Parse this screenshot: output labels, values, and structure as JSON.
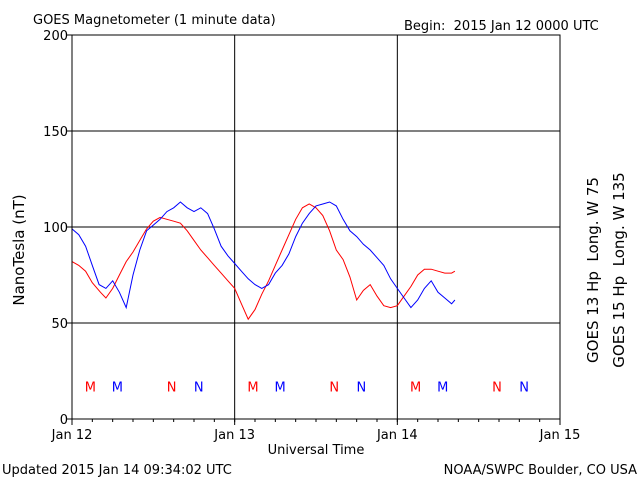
{
  "title": "GOES Magnetometer (1 minute data)",
  "begin_label": "Begin:  2015 Jan 12 0000 UTC",
  "updated": "Updated 2015 Jan 14 09:34:02 UTC",
  "credit": "NOAA/SWPC Boulder, CO USA",
  "colors": {
    "goes13": "#ff0000",
    "goes15": "#0000ff",
    "grid": "#000000"
  },
  "chart_data": {
    "type": "line",
    "xlabel": "Universal Time",
    "ylabel": "NanoTesla (nT)",
    "xlim": [
      0,
      72
    ],
    "ylim": [
      0,
      200
    ],
    "x_unit": "hours since 2015 Jan 12 0000 UTC",
    "yticks": [
      0,
      50,
      100,
      150,
      200
    ],
    "xticks": [
      {
        "x": 0,
        "label": "Jan 12"
      },
      {
        "x": 24,
        "label": "Jan 13"
      },
      {
        "x": 48,
        "label": "Jan 14"
      },
      {
        "x": 72,
        "label": "Jan 15"
      }
    ],
    "grid": true,
    "series": [
      {
        "name": "GOES 13 Hp  Long. W 75",
        "color": "#ff0000",
        "x": [
          0,
          1,
          2,
          3,
          4.2,
          5,
          6,
          7,
          8,
          9,
          10,
          11,
          12,
          13,
          14,
          15,
          16,
          17,
          18,
          19,
          20,
          21,
          22,
          23,
          24,
          25,
          26,
          27,
          28,
          29,
          30,
          31,
          32,
          33,
          34,
          35,
          36,
          37,
          38,
          39,
          40,
          41,
          42,
          43,
          44,
          45,
          46,
          47,
          48,
          49,
          50,
          51,
          52,
          53,
          54,
          55,
          56,
          56.5
        ],
        "y": [
          82,
          80,
          77,
          71,
          66,
          63,
          68,
          75,
          82,
          87,
          93,
          99,
          103,
          105,
          104,
          103,
          102,
          98,
          93,
          88,
          84,
          80,
          76,
          72,
          68,
          60,
          52,
          57,
          65,
          72,
          80,
          88,
          96,
          104,
          110,
          112,
          110,
          106,
          98,
          88,
          83,
          74,
          62,
          67,
          70,
          64,
          59,
          58,
          59,
          64,
          69,
          75,
          78,
          78,
          77,
          76,
          76,
          77
        ]
      },
      {
        "name": "GOES 15 Hp  Long. W 135",
        "color": "#0000ff",
        "x": [
          0,
          1,
          2,
          3,
          4,
          5,
          6,
          7,
          8,
          9,
          10,
          11,
          12,
          13,
          14,
          15,
          16,
          17,
          18,
          19,
          20,
          21,
          22,
          23,
          24,
          25,
          26,
          27,
          28,
          29,
          30,
          31,
          32,
          33,
          34,
          35,
          36,
          37,
          38,
          39,
          40,
          41,
          42,
          43,
          44,
          45,
          46,
          47,
          48,
          49,
          50,
          51,
          52,
          53,
          54,
          55,
          56,
          56.5
        ],
        "y": [
          99,
          96,
          90,
          80,
          70,
          68,
          72,
          66,
          58,
          75,
          88,
          98,
          101,
          104,
          108,
          110,
          113,
          110,
          108,
          110,
          107,
          99,
          90,
          85,
          81,
          77,
          73,
          70,
          68,
          70,
          76,
          80,
          86,
          95,
          102,
          107,
          111,
          112,
          113,
          111,
          104,
          98,
          95,
          91,
          88,
          84,
          80,
          73,
          68,
          63,
          58,
          62,
          68,
          72,
          66,
          63,
          60,
          62
        ]
      }
    ],
    "markers": [
      {
        "x": 2.7,
        "label": "M",
        "color": "#ff0000"
      },
      {
        "x": 6.7,
        "label": "M",
        "color": "#0000ff"
      },
      {
        "x": 14.7,
        "label": "N",
        "color": "#ff0000"
      },
      {
        "x": 18.7,
        "label": "N",
        "color": "#0000ff"
      },
      {
        "x": 26.7,
        "label": "M",
        "color": "#ff0000"
      },
      {
        "x": 30.7,
        "label": "M",
        "color": "#0000ff"
      },
      {
        "x": 38.7,
        "label": "N",
        "color": "#ff0000"
      },
      {
        "x": 42.7,
        "label": "N",
        "color": "#0000ff"
      },
      {
        "x": 50.7,
        "label": "M",
        "color": "#ff0000"
      },
      {
        "x": 54.7,
        "label": "M",
        "color": "#0000ff"
      },
      {
        "x": 62.7,
        "label": "N",
        "color": "#ff0000"
      },
      {
        "x": 66.7,
        "label": "N",
        "color": "#0000ff"
      }
    ],
    "marker_y": 17
  }
}
